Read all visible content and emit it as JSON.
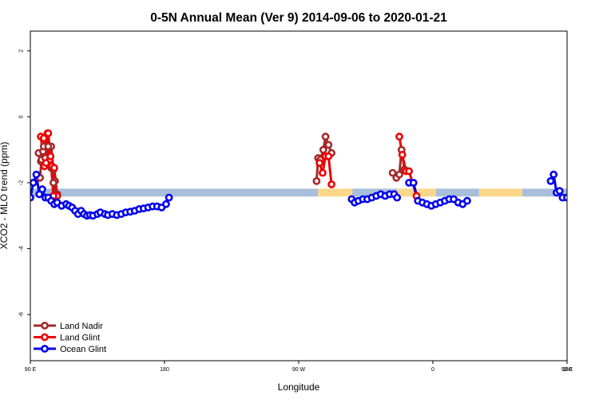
{
  "chart_data": {
    "type": "line",
    "title": "0-5N Annual Mean (Ver 9)   2014-09-06 to 2020-01-21",
    "xlabel": "Longitude",
    "ylabel": "XCO2 - MLO trend (ppm)",
    "xlim": [
      90,
      450
    ],
    "ylim": [
      -7.4,
      2.6
    ],
    "xticks": [
      {
        "value": 90,
        "label": "90 E"
      },
      {
        "value": 180,
        "label": "180"
      },
      {
        "value": 270,
        "label": "90 W"
      },
      {
        "value": 360,
        "label": "0"
      },
      {
        "value": 450,
        "label": "90 E"
      },
      {
        "value": 540,
        "label": "180"
      }
    ],
    "yticks": [
      {
        "value": 2,
        "label": "2"
      },
      {
        "value": 0,
        "label": "0"
      },
      {
        "value": -2,
        "label": "-2"
      },
      {
        "value": -4,
        "label": "-4"
      },
      {
        "value": -6,
        "label": "-6"
      }
    ],
    "band": {
      "y_center": -2.3,
      "half_height": 0.12,
      "segments": [
        {
          "x0": 90,
          "x1": 283,
          "color": "#a8bfdc"
        },
        {
          "x0": 283,
          "x1": 306,
          "color": "#fbd78a"
        },
        {
          "x0": 306,
          "x1": 336,
          "color": "#a8bfdc"
        },
        {
          "x0": 336,
          "x1": 362,
          "color": "#fbd78a"
        },
        {
          "x0": 362,
          "x1": 391,
          "color": "#a8bfdc"
        },
        {
          "x0": 391,
          "x1": 420,
          "color": "#fbd78a"
        },
        {
          "x0": 420,
          "x1": 450,
          "color": "#a8bfdc"
        }
      ]
    },
    "series": [
      {
        "name": "Land Nadir",
        "color": "#a52a2a",
        "segments": [
          [
            [
              95.5,
              -1.1
            ],
            [
              97,
              -1.35
            ],
            [
              98.5,
              -1.05
            ],
            [
              100.5,
              -0.9
            ],
            [
              101.5,
              -1.25
            ],
            [
              102.5,
              -1.3
            ],
            [
              104,
              -0.9
            ],
            [
              105.5,
              -1.6
            ],
            [
              106.5,
              -1.95
            ],
            [
              108,
              -2.35
            ]
          ],
          [
            [
              282,
              -1.95
            ],
            [
              283,
              -1.25
            ],
            [
              284.5,
              -1.3
            ],
            [
              286.5,
              -1.0
            ],
            [
              288,
              -0.6
            ],
            [
              290,
              -0.85
            ],
            [
              292,
              -1.1
            ]
          ],
          [
            [
              333,
              -1.7
            ],
            [
              335.5,
              -1.85
            ],
            [
              337.5,
              -1.75
            ],
            [
              339,
              -1.0
            ],
            [
              341,
              -1.6
            ]
          ],
          [
            [
              456.5,
              -1.85
            ],
            [
              457.5,
              -1.3
            ],
            [
              459,
              -0.9
            ],
            [
              460,
              -1.25
            ],
            [
              462,
              -0.9
            ],
            [
              464,
              -1.55
            ],
            [
              465.5,
              -2.0
            ],
            [
              467,
              -2.35
            ]
          ]
        ]
      },
      {
        "name": "Land Glint",
        "color": "#ee0000",
        "segments": [
          [
            [
              97,
              -0.6
            ],
            [
              99.5,
              -1.5
            ],
            [
              101.5,
              -0.5
            ],
            [
              103,
              -1.3
            ],
            [
              104.5,
              -1.5
            ],
            [
              106,
              -1.55
            ],
            [
              108,
              -2.4
            ]
          ],
          [
            [
              284,
              -1.4
            ],
            [
              286,
              -1.7
            ],
            [
              288,
              -1.2
            ],
            [
              290,
              -1.2
            ],
            [
              292,
              -2.05
            ]
          ],
          [
            [
              337.5,
              -0.6
            ],
            [
              339.5,
              -1.15
            ],
            [
              342,
              -1.65
            ],
            [
              344,
              -1.65
            ],
            [
              349,
              -2.4
            ]
          ],
          [
            [
              459,
              -0.65
            ],
            [
              460.5,
              -1.4
            ],
            [
              462,
              -0.5
            ],
            [
              463.5,
              -1.2
            ],
            [
              465.5,
              -2.4
            ]
          ]
        ]
      },
      {
        "name": "Ocean Glint",
        "color": "#0000ee",
        "segments": [
          [
            [
              90,
              -2.45
            ],
            [
              92,
              -2.0
            ],
            [
              94,
              -1.75
            ],
            [
              96,
              -2.35
            ],
            [
              98,
              -2.2
            ],
            [
              100,
              -2.45
            ],
            [
              102,
              -2.45
            ],
            [
              104,
              -2.55
            ],
            [
              106,
              -2.65
            ],
            [
              108,
              -2.6
            ],
            [
              111,
              -2.7
            ],
            [
              114,
              -2.65
            ],
            [
              116,
              -2.7
            ],
            [
              118,
              -2.75
            ],
            [
              120,
              -2.85
            ],
            [
              122,
              -2.95
            ],
            [
              124,
              -2.85
            ],
            [
              126,
              -2.95
            ],
            [
              128,
              -3.0
            ],
            [
              130,
              -2.98
            ],
            [
              132,
              -3.0
            ],
            [
              135,
              -2.95
            ],
            [
              137,
              -2.9
            ],
            [
              140,
              -2.95
            ],
            [
              142,
              -2.98
            ],
            [
              145,
              -2.95
            ],
            [
              148,
              -2.98
            ],
            [
              151,
              -2.95
            ],
            [
              154,
              -2.9
            ],
            [
              157,
              -2.88
            ],
            [
              160,
              -2.85
            ],
            [
              163,
              -2.8
            ],
            [
              166,
              -2.78
            ],
            [
              169,
              -2.75
            ],
            [
              172,
              -2.72
            ],
            [
              175,
              -2.72
            ],
            [
              178,
              -2.75
            ],
            [
              181,
              -2.65
            ],
            [
              183,
              -2.45
            ]
          ],
          [
            [
              305.5,
              -2.5
            ],
            [
              307.5,
              -2.6
            ],
            [
              310,
              -2.55
            ],
            [
              313,
              -2.5
            ],
            [
              316,
              -2.5
            ],
            [
              319,
              -2.45
            ],
            [
              322,
              -2.4
            ],
            [
              325,
              -2.35
            ],
            [
              328,
              -2.4
            ],
            [
              331,
              -2.35
            ],
            [
              334,
              -2.35
            ],
            [
              336,
              -2.45
            ]
          ],
          [
            [
              344,
              -2.0
            ],
            [
              347,
              -2.0
            ],
            [
              350,
              -2.55
            ],
            [
              353,
              -2.6
            ],
            [
              356,
              -2.65
            ],
            [
              359,
              -2.7
            ],
            [
              362,
              -2.65
            ],
            [
              365,
              -2.6
            ],
            [
              368,
              -2.55
            ],
            [
              371,
              -2.5
            ],
            [
              374,
              -2.5
            ],
            [
              377,
              -2.6
            ],
            [
              380,
              -2.65
            ],
            [
              383,
              -2.55
            ]
          ],
          [
            [
              439,
              -1.95
            ],
            [
              441,
              -1.75
            ],
            [
              443,
              -2.3
            ],
            [
              445,
              -2.25
            ],
            [
              447,
              -2.45
            ],
            [
              450,
              -2.45
            ]
          ]
        ]
      }
    ],
    "legend": {
      "position": "bottom-left",
      "entries": [
        "Land Nadir",
        "Land Glint",
        "Ocean Glint"
      ]
    }
  }
}
